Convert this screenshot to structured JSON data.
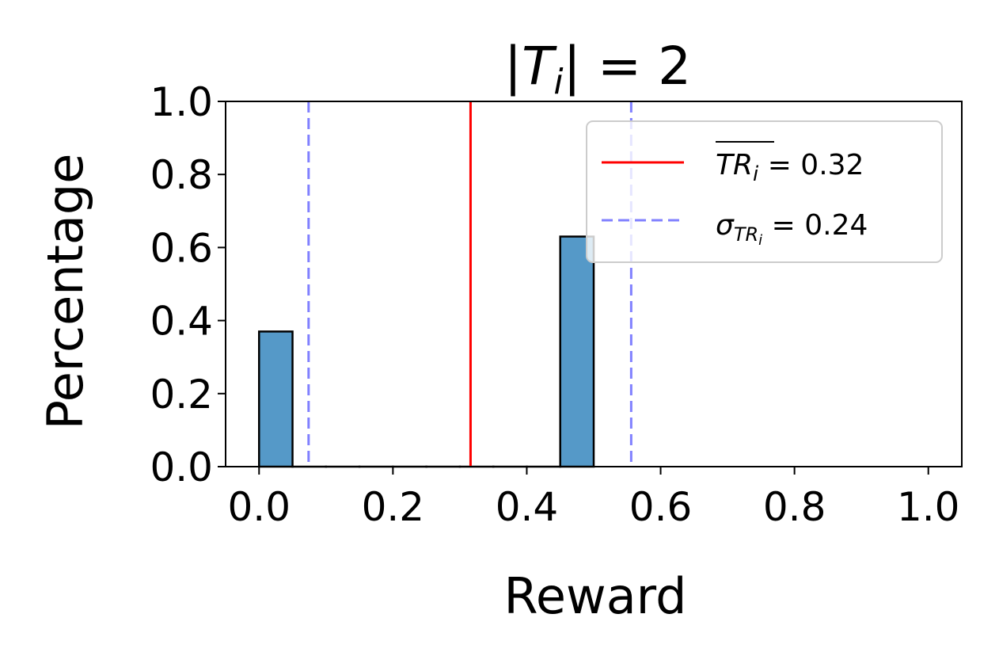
{
  "chart_data": {
    "type": "bar",
    "title": "|T_i| = 2",
    "title_parts": {
      "bar_left": "|",
      "var": "T",
      "sub": "i",
      "rest": "| = 2"
    },
    "xlabel": "Reward",
    "ylabel": "Percentage",
    "xlim": [
      -0.05,
      1.05
    ],
    "ylim": [
      0,
      1.0
    ],
    "xticks": [
      0.0,
      0.2,
      0.4,
      0.6,
      0.8,
      1.0
    ],
    "xtick_labels": [
      "0.0",
      "0.2",
      "0.4",
      "0.6",
      "0.8",
      "1.0"
    ],
    "yticks": [
      0.0,
      0.2,
      0.4,
      0.6,
      0.8,
      1.0
    ],
    "ytick_labels": [
      "0.0",
      "0.2",
      "0.4",
      "0.6",
      "0.8",
      "1.0"
    ],
    "bin_width": 0.05,
    "bars": [
      {
        "x": 0.0,
        "value": 0.37
      },
      {
        "x": 0.05,
        "value": 0
      },
      {
        "x": 0.1,
        "value": 0
      },
      {
        "x": 0.15,
        "value": 0
      },
      {
        "x": 0.2,
        "value": 0
      },
      {
        "x": 0.25,
        "value": 0
      },
      {
        "x": 0.3,
        "value": 0
      },
      {
        "x": 0.35,
        "value": 0
      },
      {
        "x": 0.4,
        "value": 0
      },
      {
        "x": 0.45,
        "value": 0.63
      }
    ],
    "bar_color": "#5599c8",
    "mean_line": {
      "x": 0.316,
      "color": "#ff0000",
      "label": "TR_i = 0.32",
      "label_parts": {
        "main": "TR",
        "sub": "i",
        "rest": " = 0.32"
      }
    },
    "std_lines": {
      "x": [
        0.074,
        0.556
      ],
      "color": "#8080ff",
      "label": "σ_TR_i = 0.24",
      "label_parts": {
        "main": "σ",
        "sub": "TR",
        "subsub": "i",
        "rest": " = 0.24"
      }
    },
    "grid": false,
    "legend_position": "top-right"
  }
}
